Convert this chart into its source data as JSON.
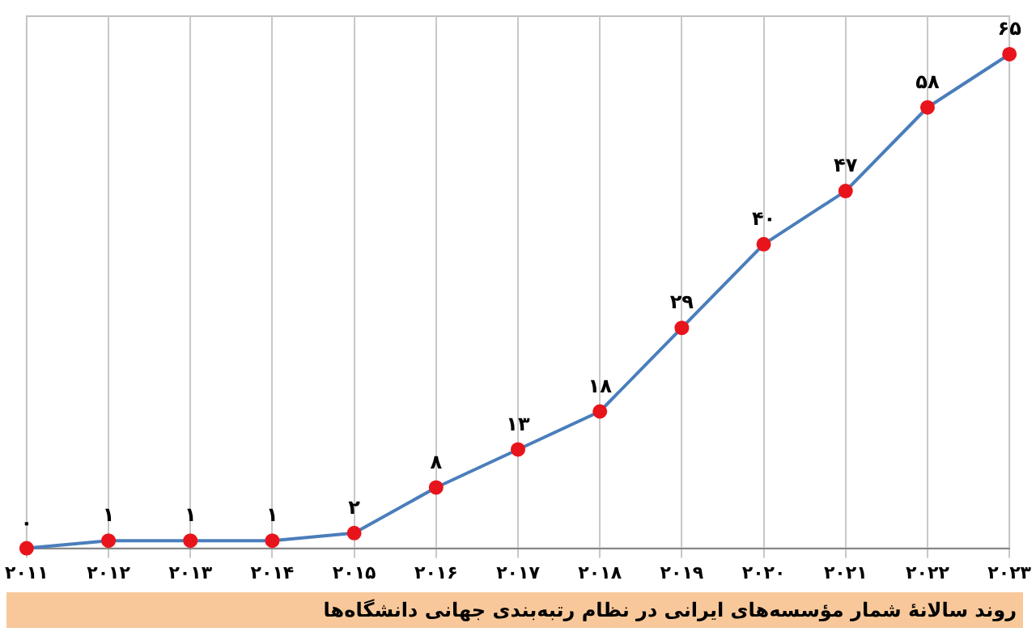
{
  "chart_data": {
    "type": "line",
    "title": "روند سالانهٔ شمار مؤسسه‌های ایرانی در نظام رتبه‌بندی جهانی دانشگاه‌ها",
    "categories": [
      "۲۰۱۱",
      "۲۰۱۲",
      "۲۰۱۳",
      "۲۰۱۴",
      "۲۰۱۵",
      "۲۰۱۶",
      "۲۰۱۷",
      "۲۰۱۸",
      "۲۰۱۹",
      "۲۰۲۰",
      "۲۰۲۱",
      "۲۰۲۲",
      "۲۰۲۳"
    ],
    "series": [
      {
        "color": "#4a7ebb",
        "colors": [
          "#e8141c",
          "#e8141c",
          "#e8141c",
          "#e8141c",
          "#e8141c",
          "#e8141c",
          "#e8141c",
          "#e8141c",
          "#e8141c",
          "#e8141c",
          "#e8141c",
          "#e8141c",
          "#e8141c"
        ],
        "values": [
          0,
          1,
          1,
          1,
          2,
          8,
          13,
          18,
          29,
          40,
          47,
          58,
          65
        ],
        "value_labels": [
          "۰",
          "۱",
          "۱",
          "۱",
          "۲",
          "۸",
          "۱۳",
          "۱۸",
          "۲۹",
          "۴۰",
          "۴۷",
          "۵۸",
          "۶۵"
        ]
      }
    ],
    "grid": "x",
    "marker": "circle",
    "line_style": "solid",
    "legend": false,
    "tick_labels": "x"
  }
}
